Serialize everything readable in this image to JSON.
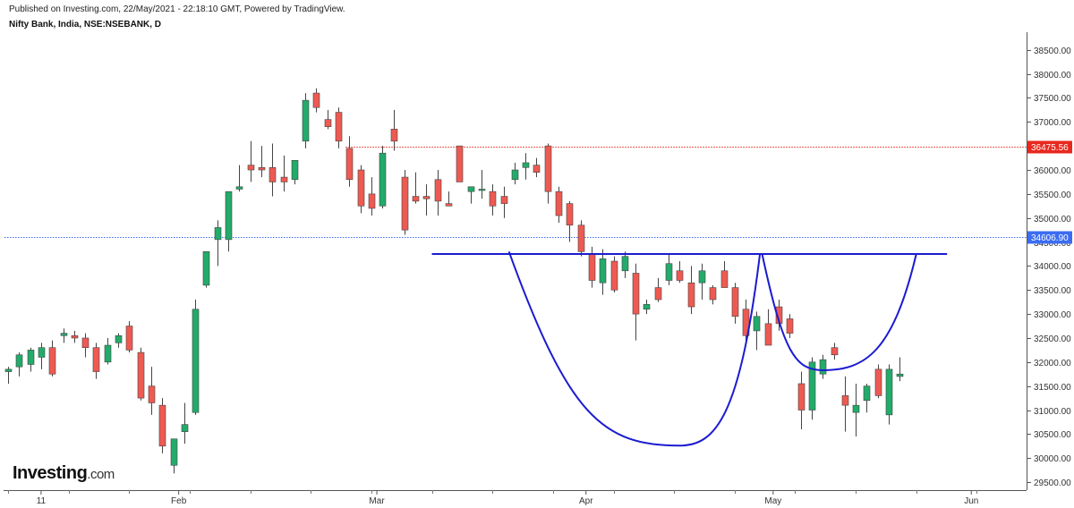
{
  "header": {
    "published": "Published on Investing.com, 22/May/2021 - 22:18:10 GMT, Powered by TradingView.",
    "symbol": "Nifty Bank, India, NSE:NSEBANK, D"
  },
  "logo": {
    "word": "Investing",
    "suffix": ".com"
  },
  "colors": {
    "up": "#22ab6a",
    "down": "#ee5a52",
    "pattern": "#1b1bd0",
    "last_price_tag": "#3b6cf2",
    "high_tag": "#e8281f"
  },
  "chart_data": {
    "type": "candlestick",
    "ylim": [
      29300,
      38800
    ],
    "y_ticks": [
      "29500.00",
      "30000.00",
      "30500.00",
      "31000.00",
      "31500.00",
      "32000.00",
      "32500.00",
      "33000.00",
      "33500.00",
      "34000.00",
      "34500.00",
      "35000.00",
      "35500.00",
      "36000.00",
      "36500.00",
      "37000.00",
      "37500.00",
      "38000.00",
      "38500.00"
    ],
    "x_tick_labels": [
      {
        "label": "11",
        "index": 3
      },
      {
        "label": "Feb",
        "index": 15.5
      },
      {
        "label": "Mar",
        "index": 33.5
      },
      {
        "label": "Apr",
        "index": 52.5
      },
      {
        "label": "May",
        "index": 69.5
      },
      {
        "label": "Jun",
        "index": 87.5
      }
    ],
    "price_lines": [
      {
        "value": 36475.56,
        "label": "36475.56",
        "color": "#e8281f",
        "start_index": 31
      },
      {
        "value": 34606.9,
        "label": "34606.90",
        "color": "#3b6cf2",
        "start_index": 0
      }
    ],
    "neckline": {
      "value": 34250,
      "from_index": 38.5,
      "to_index": 85.3
    },
    "cup": {
      "left": [
        45.5,
        34300
      ],
      "bottom": [
        61,
        30260
      ],
      "right": [
        68.3,
        34250
      ]
    },
    "handle": {
      "left": [
        68.5,
        34250
      ],
      "bottom": [
        74,
        31830
      ],
      "right": [
        82.5,
        34250
      ]
    },
    "candles": [
      {
        "o": 31800,
        "h": 31900,
        "l": 31550,
        "c": 31850
      },
      {
        "o": 31900,
        "h": 32200,
        "l": 31700,
        "c": 32150
      },
      {
        "o": 31950,
        "h": 32300,
        "l": 31800,
        "c": 32250
      },
      {
        "o": 32100,
        "h": 32400,
        "l": 31850,
        "c": 32300
      },
      {
        "o": 32300,
        "h": 32450,
        "l": 31700,
        "c": 31750
      },
      {
        "o": 32550,
        "h": 32700,
        "l": 32400,
        "c": 32600
      },
      {
        "o": 32550,
        "h": 32650,
        "l": 32400,
        "c": 32500
      },
      {
        "o": 32500,
        "h": 32600,
        "l": 32100,
        "c": 32300
      },
      {
        "o": 32300,
        "h": 32400,
        "l": 31650,
        "c": 31800
      },
      {
        "o": 32000,
        "h": 32500,
        "l": 31950,
        "c": 32350
      },
      {
        "o": 32400,
        "h": 32600,
        "l": 32300,
        "c": 32550
      },
      {
        "o": 32750,
        "h": 32850,
        "l": 32200,
        "c": 32250
      },
      {
        "o": 32200,
        "h": 32300,
        "l": 31200,
        "c": 31250
      },
      {
        "o": 31500,
        "h": 31900,
        "l": 30900,
        "c": 31150
      },
      {
        "o": 31100,
        "h": 31250,
        "l": 30100,
        "c": 30250
      },
      {
        "o": 29850,
        "h": 30400,
        "l": 29680,
        "c": 30400
      },
      {
        "o": 30550,
        "h": 31150,
        "l": 30300,
        "c": 30700
      },
      {
        "o": 30950,
        "h": 33300,
        "l": 30900,
        "c": 33100
      },
      {
        "o": 33600,
        "h": 34300,
        "l": 33550,
        "c": 34300
      },
      {
        "o": 34550,
        "h": 34950,
        "l": 34000,
        "c": 34800
      },
      {
        "o": 34550,
        "h": 35550,
        "l": 34300,
        "c": 35550
      },
      {
        "o": 35600,
        "h": 36100,
        "l": 35550,
        "c": 35650
      },
      {
        "o": 36100,
        "h": 36600,
        "l": 35750,
        "c": 36000
      },
      {
        "o": 36050,
        "h": 36500,
        "l": 35850,
        "c": 36000
      },
      {
        "o": 36050,
        "h": 36550,
        "l": 35450,
        "c": 35750
      },
      {
        "o": 35850,
        "h": 36300,
        "l": 35550,
        "c": 35750
      },
      {
        "o": 35800,
        "h": 36200,
        "l": 35700,
        "c": 36200
      },
      {
        "o": 36600,
        "h": 37600,
        "l": 36450,
        "c": 37450
      },
      {
        "o": 37600,
        "h": 37700,
        "l": 37200,
        "c": 37300
      },
      {
        "o": 37050,
        "h": 37250,
        "l": 36850,
        "c": 36900
      },
      {
        "o": 37200,
        "h": 37300,
        "l": 36450,
        "c": 36600
      },
      {
        "o": 36450,
        "h": 36700,
        "l": 35650,
        "c": 35800
      },
      {
        "o": 36000,
        "h": 36100,
        "l": 35100,
        "c": 35250
      },
      {
        "o": 35500,
        "h": 35850,
        "l": 35050,
        "c": 35200
      },
      {
        "o": 35250,
        "h": 36500,
        "l": 35200,
        "c": 36350
      },
      {
        "o": 36850,
        "h": 37250,
        "l": 36400,
        "c": 36600
      },
      {
        "o": 35850,
        "h": 36000,
        "l": 34650,
        "c": 34750
      },
      {
        "o": 35450,
        "h": 35950,
        "l": 35300,
        "c": 35350
      },
      {
        "o": 35450,
        "h": 35700,
        "l": 35050,
        "c": 35400
      },
      {
        "o": 35800,
        "h": 36000,
        "l": 35050,
        "c": 35350
      },
      {
        "o": 35300,
        "h": 35550,
        "l": 35250,
        "c": 35250
      },
      {
        "o": 36500,
        "h": 36500,
        "l": 35750,
        "c": 35750
      },
      {
        "o": 35550,
        "h": 35650,
        "l": 35300,
        "c": 35650
      },
      {
        "o": 35600,
        "h": 36000,
        "l": 35400,
        "c": 35600
      },
      {
        "o": 35550,
        "h": 35700,
        "l": 35050,
        "c": 35250
      },
      {
        "o": 35450,
        "h": 35650,
        "l": 35000,
        "c": 35300
      },
      {
        "o": 35800,
        "h": 36150,
        "l": 35700,
        "c": 36000
      },
      {
        "o": 36050,
        "h": 36350,
        "l": 35800,
        "c": 36150
      },
      {
        "o": 36100,
        "h": 36250,
        "l": 35850,
        "c": 35950
      },
      {
        "o": 36500,
        "h": 36550,
        "l": 35300,
        "c": 35550
      },
      {
        "o": 35550,
        "h": 35650,
        "l": 34900,
        "c": 35050
      },
      {
        "o": 35300,
        "h": 35350,
        "l": 34500,
        "c": 34850
      },
      {
        "o": 34850,
        "h": 34950,
        "l": 34200,
        "c": 34300
      },
      {
        "o": 34250,
        "h": 34400,
        "l": 33550,
        "c": 33700
      },
      {
        "o": 33650,
        "h": 34350,
        "l": 33400,
        "c": 34150
      },
      {
        "o": 34100,
        "h": 34200,
        "l": 33450,
        "c": 33500
      },
      {
        "o": 33900,
        "h": 34300,
        "l": 33750,
        "c": 34200
      },
      {
        "o": 33850,
        "h": 34050,
        "l": 32450,
        "c": 33000
      },
      {
        "o": 33100,
        "h": 33300,
        "l": 33000,
        "c": 33200
      },
      {
        "o": 33550,
        "h": 33750,
        "l": 33250,
        "c": 33300
      },
      {
        "o": 33700,
        "h": 34250,
        "l": 33600,
        "c": 34050
      },
      {
        "o": 33900,
        "h": 34100,
        "l": 33650,
        "c": 33700
      },
      {
        "o": 33650,
        "h": 34000,
        "l": 33000,
        "c": 33150
      },
      {
        "o": 33650,
        "h": 34050,
        "l": 33300,
        "c": 33900
      },
      {
        "o": 33550,
        "h": 33600,
        "l": 33200,
        "c": 33300
      },
      {
        "o": 33900,
        "h": 34100,
        "l": 33550,
        "c": 33550
      },
      {
        "o": 33550,
        "h": 33650,
        "l": 32800,
        "c": 32950
      },
      {
        "o": 33100,
        "h": 33300,
        "l": 32400,
        "c": 32550
      },
      {
        "o": 32650,
        "h": 33050,
        "l": 32250,
        "c": 32950
      },
      {
        "o": 32800,
        "h": 33100,
        "l": 32400,
        "c": 32350
      },
      {
        "o": 33150,
        "h": 33300,
        "l": 32650,
        "c": 32800
      },
      {
        "o": 32900,
        "h": 33000,
        "l": 32500,
        "c": 32600
      },
      {
        "o": 31550,
        "h": 31800,
        "l": 30600,
        "c": 31000
      },
      {
        "o": 31000,
        "h": 32100,
        "l": 30800,
        "c": 32000
      },
      {
        "o": 31750,
        "h": 32150,
        "l": 31650,
        "c": 32050
      },
      {
        "o": 32300,
        "h": 32400,
        "l": 32050,
        "c": 32150
      },
      {
        "o": 31300,
        "h": 31700,
        "l": 30550,
        "c": 31100
      },
      {
        "o": 30950,
        "h": 31550,
        "l": 30450,
        "c": 31100
      },
      {
        "o": 31200,
        "h": 31550,
        "l": 30950,
        "c": 31500
      },
      {
        "o": 31850,
        "h": 31950,
        "l": 31250,
        "c": 31300
      },
      {
        "o": 30900,
        "h": 31950,
        "l": 30700,
        "c": 31850
      },
      {
        "o": 31700,
        "h": 32100,
        "l": 31600,
        "c": 31750
      }
    ]
  }
}
